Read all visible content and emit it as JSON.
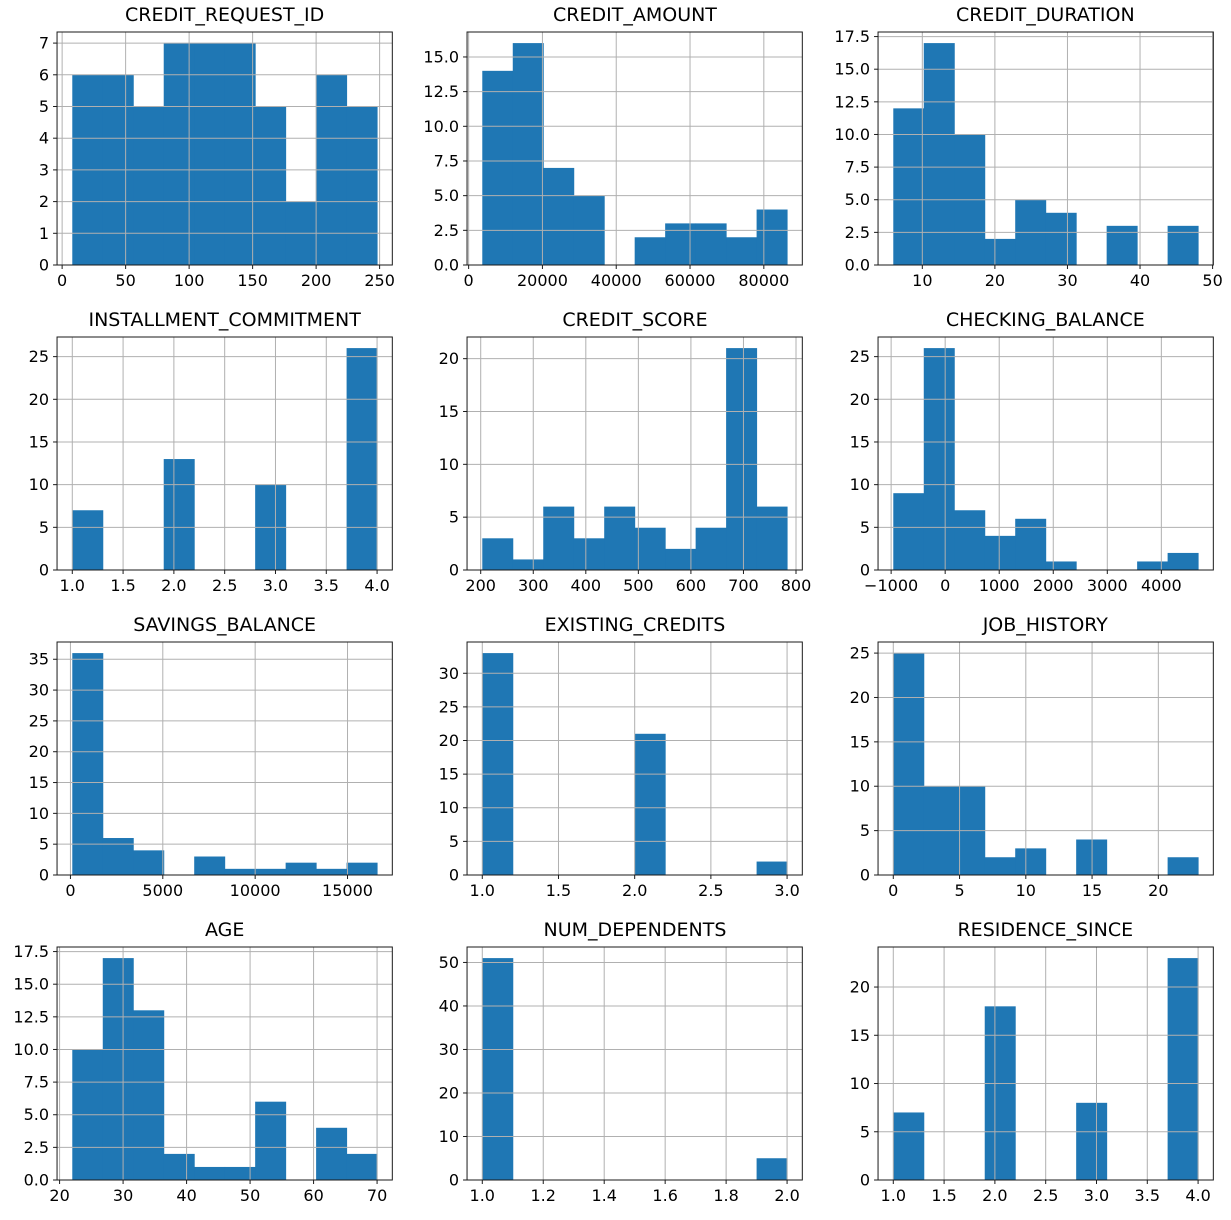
{
  "figure": {
    "layout": "4 rows x 3 columns of histograms",
    "total_samples_per_histogram": 56,
    "bar_color": "#1f77b4",
    "grid_color": "#b0b0b0",
    "spine_color": "#1a1a1a",
    "text_color": "#000000",
    "background": "#ffffff",
    "grid": true,
    "legend": "none"
  },
  "chart_data": [
    {
      "type": "bar",
      "subtype": "histogram",
      "title": "CREDIT_REQUEST_ID",
      "bin_start": 8,
      "bin_end": 248,
      "num_bins": 10,
      "counts": [
        6,
        6,
        5,
        7,
        7,
        7,
        5,
        2,
        6,
        5
      ],
      "xtick_values": [
        0,
        50,
        100,
        150,
        200,
        250
      ],
      "xtick_labels": [
        "0",
        "50",
        "100",
        "150",
        "200",
        "250"
      ],
      "ytick_values": [
        0,
        1,
        2,
        3,
        4,
        5,
        6,
        7
      ],
      "ytick_labels": [
        "0",
        "1",
        "2",
        "3",
        "4",
        "5",
        "6",
        "7"
      ],
      "xlim": [
        -4,
        260
      ],
      "ylim": [
        0,
        7.35
      ]
    },
    {
      "type": "bar",
      "subtype": "histogram",
      "title": "CREDIT_AMOUNT",
      "bin_start": 3700,
      "bin_end": 86300,
      "num_bins": 10,
      "counts": [
        14,
        16,
        7,
        5,
        0,
        2,
        3,
        3,
        2,
        4
      ],
      "xtick_values": [
        0,
        20000,
        40000,
        60000,
        80000
      ],
      "xtick_labels": [
        "0",
        "20000",
        "40000",
        "60000",
        "80000"
      ],
      "ytick_values": [
        0,
        2.5,
        5,
        7.5,
        10,
        12.5,
        15
      ],
      "ytick_labels": [
        "0.0",
        "2.5",
        "5.0",
        "7.5",
        "10.0",
        "12.5",
        "15.0"
      ],
      "xlim": [
        -430,
        90430
      ],
      "ylim": [
        0,
        16.8
      ]
    },
    {
      "type": "bar",
      "subtype": "histogram",
      "title": "CREDIT_DURATION",
      "bin_start": 6,
      "bin_end": 48,
      "num_bins": 10,
      "counts": [
        12,
        17,
        10,
        2,
        5,
        4,
        0,
        3,
        0,
        3
      ],
      "xtick_values": [
        10,
        20,
        30,
        40,
        50
      ],
      "xtick_labels": [
        "10",
        "20",
        "30",
        "40",
        "50"
      ],
      "ytick_values": [
        0,
        2.5,
        5,
        7.5,
        10,
        12.5,
        15,
        17.5
      ],
      "ytick_labels": [
        "0.0",
        "2.5",
        "5.0",
        "7.5",
        "10.0",
        "12.5",
        "15.0",
        "17.5"
      ],
      "xlim": [
        3.9,
        50.1
      ],
      "ylim": [
        0,
        17.85
      ]
    },
    {
      "type": "bar",
      "subtype": "histogram",
      "title": "INSTALLMENT_COMMITMENT",
      "bin_start": 1,
      "bin_end": 4,
      "num_bins": 10,
      "counts": [
        7,
        0,
        0,
        13,
        0,
        0,
        10,
        0,
        0,
        26
      ],
      "xtick_values": [
        1,
        1.5,
        2,
        2.5,
        3,
        3.5,
        4
      ],
      "xtick_labels": [
        "1.0",
        "1.5",
        "2.0",
        "2.5",
        "3.0",
        "3.5",
        "4.0"
      ],
      "ytick_values": [
        0,
        5,
        10,
        15,
        20,
        25
      ],
      "ytick_labels": [
        "0",
        "5",
        "10",
        "15",
        "20",
        "25"
      ],
      "xlim": [
        0.85,
        4.15
      ],
      "ylim": [
        0,
        27.3
      ]
    },
    {
      "type": "bar",
      "subtype": "histogram",
      "title": "CREDIT_SCORE",
      "bin_start": 203,
      "bin_end": 783,
      "num_bins": 10,
      "counts": [
        3,
        1,
        6,
        3,
        6,
        4,
        2,
        4,
        21,
        6
      ],
      "xtick_values": [
        200,
        300,
        400,
        500,
        600,
        700,
        800
      ],
      "xtick_labels": [
        "200",
        "300",
        "400",
        "500",
        "600",
        "700",
        "800"
      ],
      "ytick_values": [
        0,
        5,
        10,
        15,
        20
      ],
      "ytick_labels": [
        "0",
        "5",
        "10",
        "15",
        "20"
      ],
      "xlim": [
        174,
        812
      ],
      "ylim": [
        0,
        22.05
      ]
    },
    {
      "type": "bar",
      "subtype": "histogram",
      "title": "CHECKING_BALANCE",
      "bin_start": -960,
      "bin_end": 4680,
      "num_bins": 10,
      "counts": [
        9,
        26,
        7,
        4,
        6,
        1,
        0,
        0,
        1,
        2
      ],
      "xtick_values": [
        -1000,
        0,
        1000,
        2000,
        3000,
        4000
      ],
      "xtick_labels": [
        "−1000",
        "0",
        "1000",
        "2000",
        "3000",
        "4000"
      ],
      "ytick_values": [
        0,
        5,
        10,
        15,
        20,
        25
      ],
      "ytick_labels": [
        "0",
        "5",
        "10",
        "15",
        "20",
        "25"
      ],
      "xlim": [
        -1242,
        4962
      ],
      "ylim": [
        0,
        27.3
      ]
    },
    {
      "type": "bar",
      "subtype": "histogram",
      "title": "SAVINGS_BALANCE",
      "bin_start": 100,
      "bin_end": 16600,
      "num_bins": 10,
      "counts": [
        36,
        6,
        4,
        0,
        3,
        1,
        1,
        2,
        1,
        2
      ],
      "xtick_values": [
        0,
        5000,
        10000,
        15000
      ],
      "xtick_labels": [
        "0",
        "5000",
        "10000",
        "15000"
      ],
      "ytick_values": [
        0,
        5,
        10,
        15,
        20,
        25,
        30,
        35
      ],
      "ytick_labels": [
        "0",
        "5",
        "10",
        "15",
        "20",
        "25",
        "30",
        "35"
      ],
      "xlim": [
        -725,
        17425
      ],
      "ylim": [
        0,
        37.8
      ]
    },
    {
      "type": "bar",
      "subtype": "histogram",
      "title": "EXISTING_CREDITS",
      "bin_start": 1,
      "bin_end": 3,
      "num_bins": 10,
      "counts": [
        33,
        0,
        0,
        0,
        0,
        21,
        0,
        0,
        0,
        2
      ],
      "xtick_values": [
        1,
        1.5,
        2,
        2.5,
        3
      ],
      "xtick_labels": [
        "1.0",
        "1.5",
        "2.0",
        "2.5",
        "3.0"
      ],
      "ytick_values": [
        0,
        5,
        10,
        15,
        20,
        25,
        30
      ],
      "ytick_labels": [
        "0",
        "5",
        "10",
        "15",
        "20",
        "25",
        "30"
      ],
      "xlim": [
        0.9,
        3.1
      ],
      "ylim": [
        0,
        34.65
      ]
    },
    {
      "type": "bar",
      "subtype": "histogram",
      "title": "JOB_HISTORY",
      "bin_start": 0,
      "bin_end": 23,
      "num_bins": 10,
      "counts": [
        25,
        10,
        10,
        2,
        3,
        0,
        4,
        0,
        0,
        2
      ],
      "xtick_values": [
        0,
        5,
        10,
        15,
        20
      ],
      "xtick_labels": [
        "0",
        "5",
        "10",
        "15",
        "20"
      ],
      "ytick_values": [
        0,
        5,
        10,
        15,
        20,
        25
      ],
      "ytick_labels": [
        "0",
        "5",
        "10",
        "15",
        "20",
        "25"
      ],
      "xlim": [
        -1.15,
        24.15
      ],
      "ylim": [
        0,
        26.25
      ]
    },
    {
      "type": "bar",
      "subtype": "histogram",
      "title": "AGE",
      "bin_start": 22,
      "bin_end": 70,
      "num_bins": 10,
      "counts": [
        10,
        17,
        13,
        2,
        1,
        1,
        6,
        0,
        4,
        2
      ],
      "xtick_values": [
        20,
        30,
        40,
        50,
        60,
        70
      ],
      "xtick_labels": [
        "20",
        "30",
        "40",
        "50",
        "60",
        "70"
      ],
      "ytick_values": [
        0,
        2.5,
        5,
        7.5,
        10,
        12.5,
        15,
        17.5
      ],
      "ytick_labels": [
        "0.0",
        "2.5",
        "5.0",
        "7.5",
        "10.0",
        "12.5",
        "15.0",
        "17.5"
      ],
      "xlim": [
        19.6,
        72.4
      ],
      "ylim": [
        0,
        17.85
      ]
    },
    {
      "type": "bar",
      "subtype": "histogram",
      "title": "NUM_DEPENDENTS",
      "bin_start": 1,
      "bin_end": 2,
      "num_bins": 10,
      "counts": [
        51,
        0,
        0,
        0,
        0,
        0,
        0,
        0,
        0,
        5
      ],
      "xtick_values": [
        1,
        1.2,
        1.4,
        1.6,
        1.8,
        2
      ],
      "xtick_labels": [
        "1.0",
        "1.2",
        "1.4",
        "1.6",
        "1.8",
        "2.0"
      ],
      "ytick_values": [
        0,
        10,
        20,
        30,
        40,
        50
      ],
      "ytick_labels": [
        "0",
        "10",
        "20",
        "30",
        "40",
        "50"
      ],
      "xlim": [
        0.95,
        2.05
      ],
      "ylim": [
        0,
        53.55
      ]
    },
    {
      "type": "bar",
      "subtype": "histogram",
      "title": "RESIDENCE_SINCE",
      "bin_start": 1,
      "bin_end": 4,
      "num_bins": 10,
      "counts": [
        7,
        0,
        0,
        18,
        0,
        0,
        8,
        0,
        0,
        23
      ],
      "xtick_values": [
        1,
        1.5,
        2,
        2.5,
        3,
        3.5,
        4
      ],
      "xtick_labels": [
        "1.0",
        "1.5",
        "2.0",
        "2.5",
        "3.0",
        "3.5",
        "4.0"
      ],
      "ytick_values": [
        0,
        5,
        10,
        15,
        20
      ],
      "ytick_labels": [
        "0",
        "5",
        "10",
        "15",
        "20"
      ],
      "xlim": [
        0.85,
        4.15
      ],
      "ylim": [
        0,
        24.15
      ]
    }
  ]
}
